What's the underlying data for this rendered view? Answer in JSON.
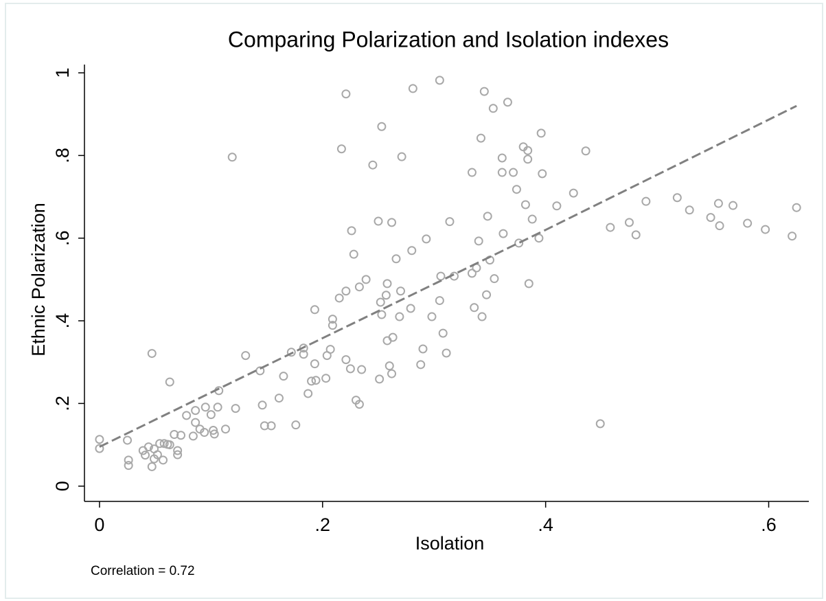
{
  "chart_data": {
    "type": "scatter",
    "title": "Comparing Polarization and Isolation indexes",
    "xlabel": "Isolation",
    "ylabel": "Ethnic Polarization",
    "note": "Correlation = 0.72",
    "color": "#a8a8a8",
    "x": [
      0,
      0,
      0.025,
      0.026,
      0.026,
      0.039,
      0.041,
      0.044,
      0.047,
      0.047,
      0.049,
      0.049,
      0.052,
      0.054,
      0.057,
      0.058,
      0.061,
      0.063,
      0.063,
      0.067,
      0.07,
      0.07,
      0.073,
      0.078,
      0.084,
      0.086,
      0.086,
      0.09,
      0.094,
      0.095,
      0.1,
      0.102,
      0.103,
      0.106,
      0.107,
      0.113,
      0.119,
      0.122,
      0.131,
      0.144,
      0.146,
      0.148,
      0.154,
      0.161,
      0.165,
      0.176,
      0.172,
      0.183,
      0.183,
      0.187,
      0.19,
      0.193,
      0.193,
      0.194,
      0.203,
      0.204,
      0.207,
      0.209,
      0.209,
      0.215,
      0.217,
      0.221,
      0.221,
      0.221,
      0.225,
      0.226,
      0.228,
      0.23,
      0.233,
      0.233,
      0.235,
      0.239,
      0.245,
      0.25,
      0.251,
      0.252,
      0.253,
      0.253,
      0.257,
      0.258,
      0.258,
      0.26,
      0.262,
      0.262,
      0.263,
      0.266,
      0.269,
      0.27,
      0.271,
      0.279,
      0.28,
      0.281,
      0.288,
      0.29,
      0.293,
      0.298,
      0.305,
      0.305,
      0.306,
      0.308,
      0.311,
      0.314,
      0.318,
      0.334,
      0.334,
      0.336,
      0.338,
      0.34,
      0.342,
      0.343,
      0.345,
      0.347,
      0.348,
      0.35,
      0.353,
      0.354,
      0.361,
      0.361,
      0.362,
      0.366,
      0.371,
      0.374,
      0.376,
      0.38,
      0.382,
      0.384,
      0.384,
      0.385,
      0.388,
      0.394,
      0.396,
      0.397,
      0.41,
      0.425,
      0.436,
      0.449,
      0.458,
      0.475,
      0.481,
      0.49,
      0.518,
      0.529,
      0.548,
      0.555,
      0.556,
      0.568,
      0.581,
      0.597,
      0.621,
      0.625
    ],
    "values": [
      0.113,
      0.091,
      0.111,
      0.063,
      0.05,
      0.086,
      0.075,
      0.095,
      0.321,
      0.047,
      0.09,
      0.066,
      0.076,
      0.103,
      0.063,
      0.103,
      0.101,
      0.252,
      0.1,
      0.125,
      0.086,
      0.076,
      0.123,
      0.171,
      0.121,
      0.183,
      0.154,
      0.138,
      0.13,
      0.191,
      0.173,
      0.135,
      0.126,
      0.191,
      0.231,
      0.138,
      0.796,
      0.188,
      0.316,
      0.279,
      0.196,
      0.146,
      0.146,
      0.213,
      0.266,
      0.148,
      0.324,
      0.334,
      0.319,
      0.224,
      0.254,
      0.296,
      0.427,
      0.256,
      0.261,
      0.316,
      0.331,
      0.404,
      0.389,
      0.455,
      0.816,
      0.472,
      0.949,
      0.306,
      0.284,
      0.618,
      0.561,
      0.208,
      0.198,
      0.482,
      0.282,
      0.5,
      0.777,
      0.641,
      0.259,
      0.445,
      0.87,
      0.415,
      0.462,
      0.49,
      0.352,
      0.291,
      0.272,
      0.638,
      0.36,
      0.55,
      0.41,
      0.472,
      0.797,
      0.43,
      0.57,
      0.962,
      0.294,
      0.332,
      0.598,
      0.41,
      0.982,
      0.449,
      0.508,
      0.37,
      0.322,
      0.64,
      0.508,
      0.759,
      0.515,
      0.432,
      0.528,
      0.593,
      0.842,
      0.41,
      0.955,
      0.463,
      0.653,
      0.547,
      0.914,
      0.502,
      0.794,
      0.759,
      0.611,
      0.929,
      0.759,
      0.718,
      0.588,
      0.821,
      0.681,
      0.812,
      0.791,
      0.49,
      0.646,
      0.6,
      0.854,
      0.756,
      0.678,
      0.709,
      0.811,
      0.151,
      0.626,
      0.638,
      0.608,
      0.689,
      0.698,
      0.668,
      0.65,
      0.684,
      0.63,
      0.679,
      0.636,
      0.621,
      0.605,
      0.674
    ],
    "fit": {
      "color": "#808080",
      "x": [
        0,
        0.2,
        0.4,
        0.625
      ],
      "values": [
        0.095,
        0.358,
        0.62,
        0.92
      ]
    },
    "xlim": [
      -0.0135,
      0.636
    ],
    "ylim": [
      -0.037,
      1.02
    ],
    "xticks": [
      0,
      {
        "value": 0.2,
        "label": ".2"
      },
      {
        "value": 0.4,
        "label": ".4"
      },
      {
        "value": 0.6,
        "label": ".6"
      }
    ],
    "yticks": [
      0,
      {
        "value": 0.2,
        "label": ".2"
      },
      {
        "value": 0.4,
        "label": ".4"
      },
      {
        "value": 0.6,
        "label": ".6"
      },
      {
        "value": 0.8,
        "label": ".8"
      },
      1
    ]
  }
}
